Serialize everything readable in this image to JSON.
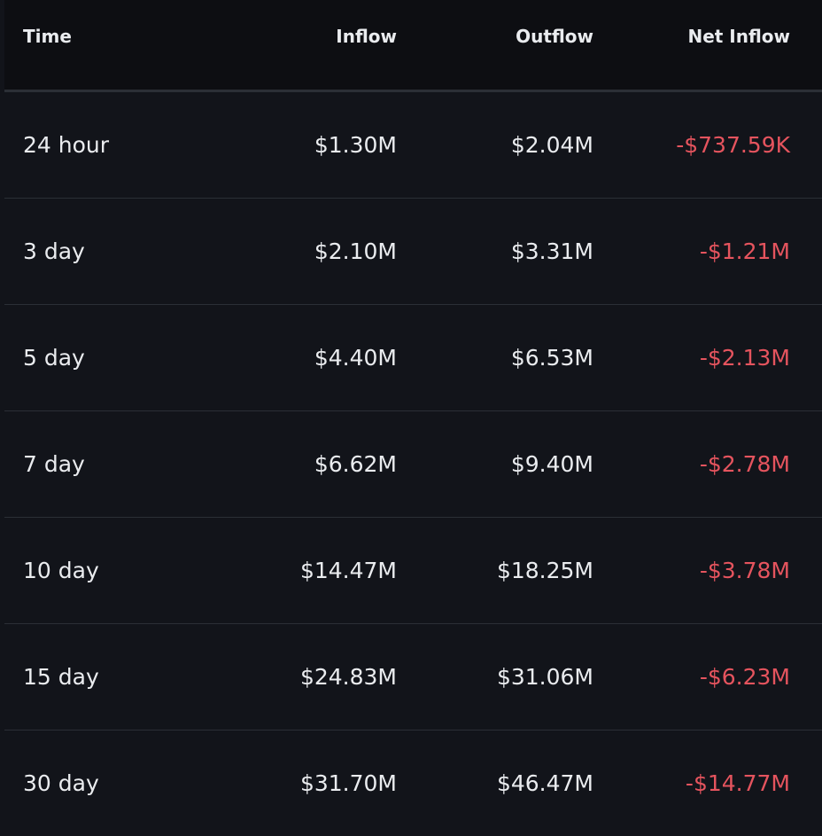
{
  "colors": {
    "background": "#12141a",
    "header_background": "#0d0e12",
    "text": "#eaecef",
    "negative": "#e5545e",
    "divider": "#2b2f36"
  },
  "header": {
    "time": "Time",
    "inflow": "Inflow",
    "outflow": "Outflow",
    "net_inflow": "Net Inflow"
  },
  "rows": [
    {
      "time": "24 hour",
      "inflow": "$1.30M",
      "outflow": "$2.04M",
      "net_inflow": "-$737.59K"
    },
    {
      "time": "3 day",
      "inflow": "$2.10M",
      "outflow": "$3.31M",
      "net_inflow": "-$1.21M"
    },
    {
      "time": "5 day",
      "inflow": "$4.40M",
      "outflow": "$6.53M",
      "net_inflow": "-$2.13M"
    },
    {
      "time": "7 day",
      "inflow": "$6.62M",
      "outflow": "$9.40M",
      "net_inflow": "-$2.78M"
    },
    {
      "time": "10 day",
      "inflow": "$14.47M",
      "outflow": "$18.25M",
      "net_inflow": "-$3.78M"
    },
    {
      "time": "15 day",
      "inflow": "$24.83M",
      "outflow": "$31.06M",
      "net_inflow": "-$6.23M"
    },
    {
      "time": "30 day",
      "inflow": "$31.70M",
      "outflow": "$46.47M",
      "net_inflow": "-$14.77M"
    }
  ]
}
